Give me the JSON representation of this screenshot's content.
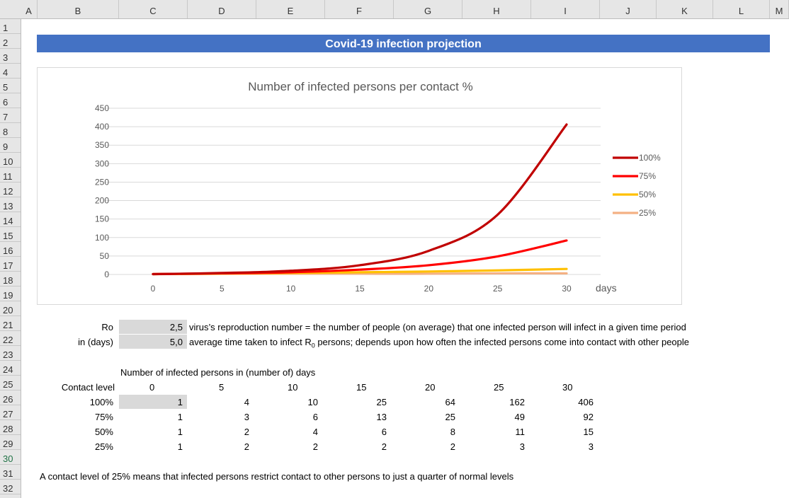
{
  "columns": [
    "A",
    "B",
    "C",
    "D",
    "E",
    "F",
    "G",
    "H",
    "I",
    "J",
    "K",
    "L",
    "M"
  ],
  "rows": [
    "1",
    "2",
    "3",
    "4",
    "5",
    "6",
    "7",
    "8",
    "9",
    "10",
    "11",
    "12",
    "13",
    "14",
    "15",
    "16",
    "17",
    "18",
    "19",
    "20",
    "21",
    "22",
    "23",
    "24",
    "25",
    "26",
    "27",
    "28",
    "29",
    "30",
    "31",
    "32"
  ],
  "sheet_title": "Covid-19 infection projection",
  "params": [
    {
      "label": "Ro",
      "value": "2,5",
      "desc": "virus’s reproduction number = the number of people (on average) that one infected person will infect in a given time period"
    },
    {
      "label": "in (days)",
      "value": "5,0",
      "desc_pre": "average time taken to infect R",
      "desc_sub": "0",
      "desc_post": " persons; depends upon how often the infected persons come into contact with other people"
    }
  ],
  "table": {
    "caption": "Number of infected persons in (number of) days",
    "contact_label": "Contact level",
    "days": [
      "0",
      "5",
      "10",
      "15",
      "20",
      "25",
      "30"
    ],
    "rows": [
      {
        "level": "100%",
        "values": [
          "1",
          "4",
          "10",
          "25",
          "64",
          "162",
          "406"
        ]
      },
      {
        "level": "75%",
        "values": [
          "1",
          "3",
          "6",
          "13",
          "25",
          "49",
          "92"
        ]
      },
      {
        "level": "50%",
        "values": [
          "1",
          "2",
          "4",
          "6",
          "8",
          "11",
          "15"
        ]
      },
      {
        "level": "25%",
        "values": [
          "1",
          "2",
          "2",
          "2",
          "2",
          "3",
          "3"
        ]
      }
    ]
  },
  "footnote": "A contact level of 25% means that infected persons restrict contact to other persons to just a quarter of normal levels",
  "chart_data": {
    "type": "line",
    "title": "Number of infected persons per contact %",
    "xlabel": "days",
    "ylabel": "",
    "xlim": [
      0,
      30
    ],
    "ylim": [
      0,
      450
    ],
    "x_ticks": [
      "0",
      "5",
      "10",
      "15",
      "20",
      "25",
      "30"
    ],
    "y_ticks": [
      "0",
      "50",
      "100",
      "150",
      "200",
      "250",
      "300",
      "350",
      "400",
      "450"
    ],
    "x": [
      0,
      5,
      10,
      15,
      20,
      25,
      30
    ],
    "series": [
      {
        "name": "100%",
        "color": "#c00000",
        "values": [
          1,
          4,
          10,
          25,
          64,
          162,
          406
        ]
      },
      {
        "name": "75%",
        "color": "#ff0000",
        "values": [
          1,
          3,
          6,
          13,
          25,
          49,
          92
        ]
      },
      {
        "name": "50%",
        "color": "#ffc000",
        "values": [
          1,
          2,
          4,
          6,
          8,
          11,
          15
        ]
      },
      {
        "name": "25%",
        "color": "#f4b183",
        "values": [
          1,
          2,
          2,
          2,
          2,
          3,
          3
        ]
      }
    ],
    "grid": true,
    "legend": "right"
  }
}
